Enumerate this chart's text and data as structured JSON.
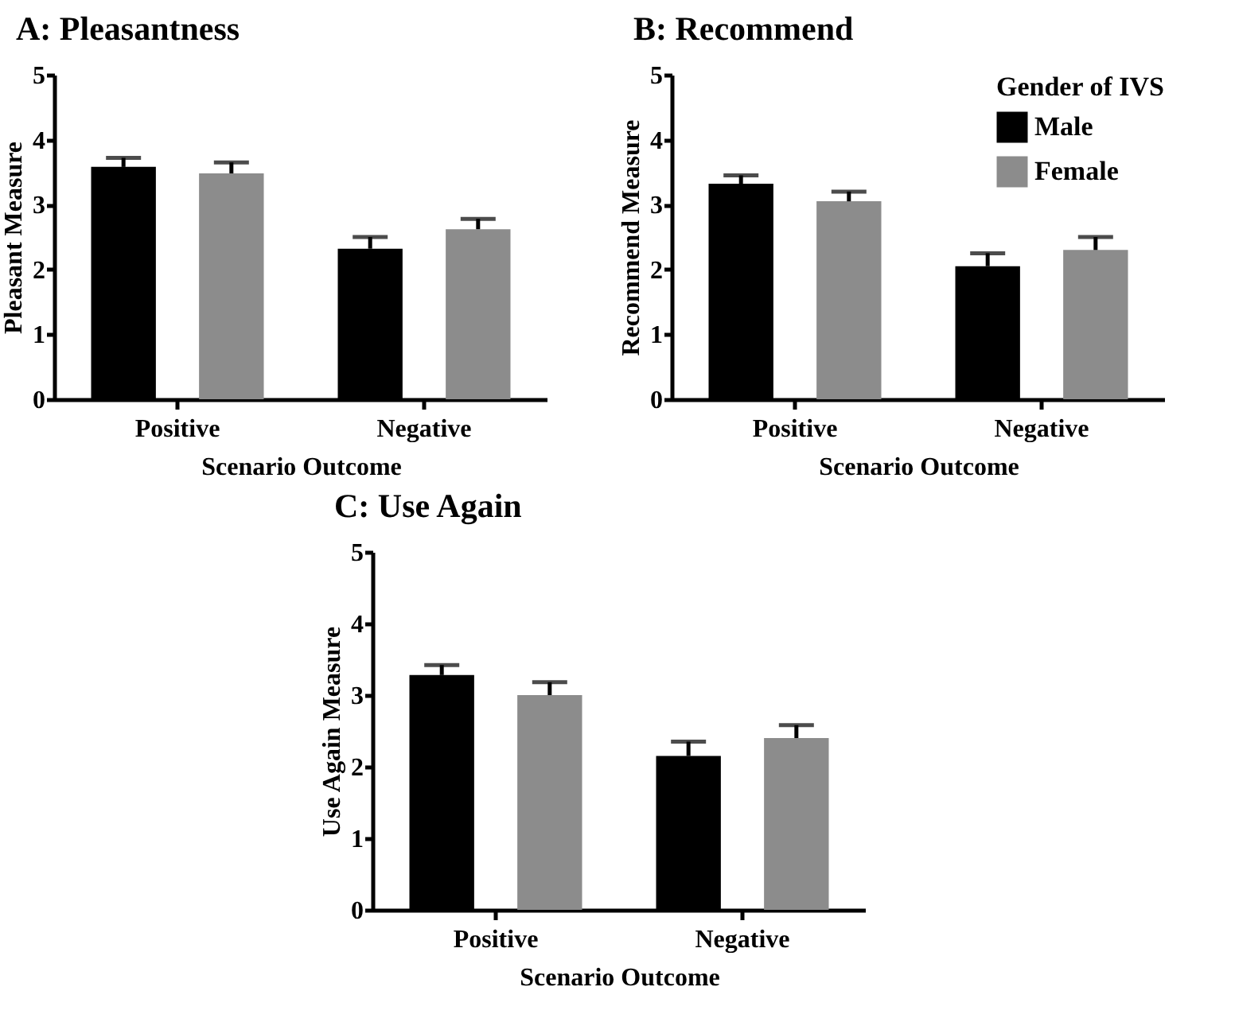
{
  "chart_data": [
    {
      "type": "bar",
      "title": "A: Pleasantness",
      "xlabel": "Scenario Outcome",
      "ylabel": "Pleasant Measure",
      "categories": [
        "Positive",
        "Negative"
      ],
      "ylim": [
        0,
        5
      ],
      "yticks": [
        0,
        1,
        2,
        3,
        4,
        5
      ],
      "series": [
        {
          "color": "#000000",
          "values": [
            3.58,
            2.32
          ],
          "errors": [
            [
              3.58,
              3.72
            ],
            [
              2.32,
              2.5
            ]
          ]
        },
        {
          "color": "#8c8c8c",
          "values": [
            3.48,
            2.62
          ],
          "errors": [
            [
              3.48,
              3.65
            ],
            [
              2.62,
              2.78
            ]
          ]
        }
      ]
    },
    {
      "type": "bar",
      "title": "B: Recommend",
      "xlabel": "Scenario Outcome",
      "ylabel": "Recommend Measure",
      "legend_title": "Gender of IVS",
      "legend": "top right",
      "categories": [
        "Positive",
        "Negative"
      ],
      "ylim": [
        0,
        5
      ],
      "yticks": [
        0,
        1,
        2,
        3,
        4,
        5
      ],
      "series": [
        {
          "name": "Male",
          "color": "#000000",
          "values": [
            3.32,
            2.05
          ],
          "errors": [
            [
              3.32,
              3.45
            ],
            [
              2.05,
              2.25
            ]
          ]
        },
        {
          "name": "Female",
          "color": "#8c8c8c",
          "values": [
            3.05,
            2.3
          ],
          "errors": [
            [
              3.05,
              3.2
            ],
            [
              2.3,
              2.5
            ]
          ]
        }
      ]
    },
    {
      "type": "bar",
      "title": "C: Use Again",
      "xlabel": "Scenario Outcome",
      "ylabel": "Use Again Measure",
      "categories": [
        "Positive",
        "Negative"
      ],
      "ylim": [
        0,
        5
      ],
      "yticks": [
        0,
        1,
        2,
        3,
        4,
        5
      ],
      "series": [
        {
          "color": "#000000",
          "values": [
            3.28,
            2.15
          ],
          "errors": [
            [
              3.28,
              3.42
            ],
            [
              2.15,
              2.35
            ]
          ]
        },
        {
          "color": "#8c8c8c",
          "values": [
            3.0,
            2.4
          ],
          "errors": [
            [
              3.0,
              3.18
            ],
            [
              2.4,
              2.58
            ]
          ]
        }
      ]
    }
  ]
}
